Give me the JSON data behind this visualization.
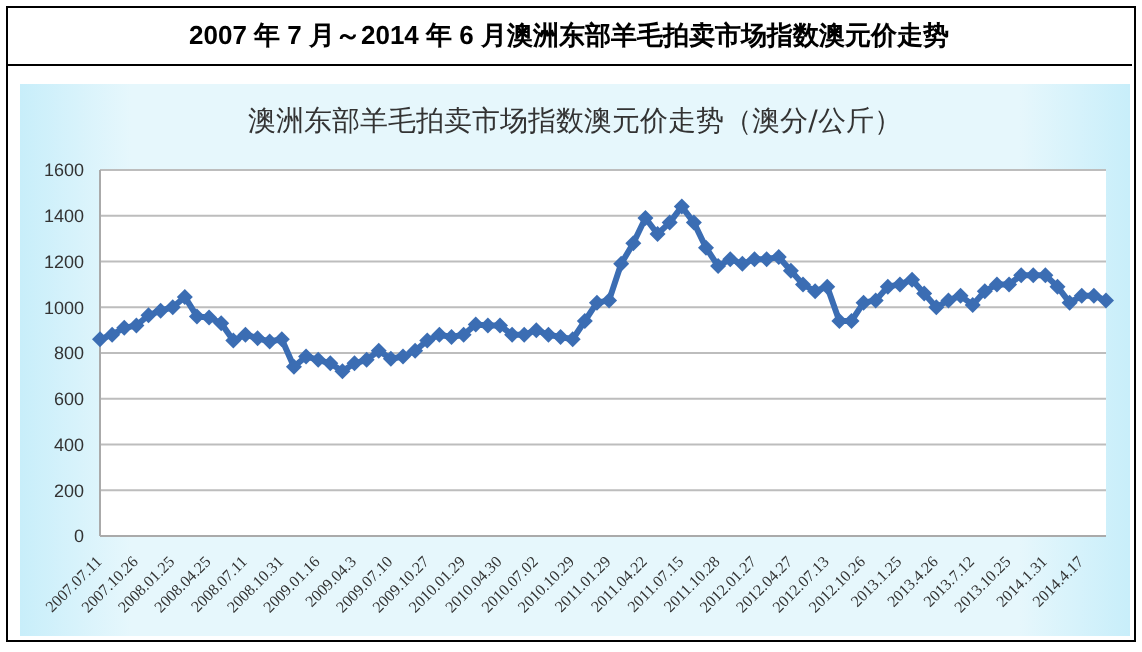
{
  "chart_data": {
    "type": "line",
    "title": "2007 年 7 月～2014 年 6 月澳洲东部羊毛拍卖市场指数澳元价走势",
    "subtitle": "澳洲东部羊毛拍卖市场指数澳元价走势（澳分/公斤）",
    "categories": [
      "2007.07.11",
      null,
      null,
      "2007.10.26",
      null,
      null,
      "2008.01.25",
      null,
      null,
      "2008.04.25",
      null,
      null,
      "2008.07.11",
      null,
      null,
      "2008.10.31",
      null,
      null,
      "2009.01.16",
      null,
      null,
      "2009.04.3",
      null,
      null,
      "2009.07.10",
      null,
      null,
      "2009.10.27",
      null,
      null,
      "2010.01.29",
      null,
      null,
      "2010.04.30",
      null,
      null,
      "2010.07.02",
      null,
      null,
      "2010.10.29",
      null,
      null,
      "2011.01.29",
      null,
      null,
      "2011.04.22",
      null,
      null,
      "2011.07.15",
      null,
      null,
      "2011.10.28",
      null,
      null,
      "2012.01.27",
      null,
      null,
      "2012.04.27",
      null,
      null,
      "2012.07.13",
      null,
      null,
      "2012.10.26",
      null,
      null,
      "2013.1.25",
      null,
      null,
      "2013.4.26",
      null,
      null,
      "2013.7.12",
      null,
      null,
      "2013.10.25",
      null,
      null,
      "2014.1.31",
      null,
      null,
      "2014.4.17",
      null,
      null
    ],
    "series": [
      {
        "color": "#3b6db3",
        "values": [
          860,
          880,
          910,
          920,
          965,
          985,
          1000,
          1045,
          960,
          955,
          930,
          855,
          880,
          865,
          850,
          860,
          740,
          785,
          770,
          755,
          720,
          755,
          770,
          810,
          775,
          785,
          810,
          855,
          880,
          870,
          880,
          925,
          920,
          920,
          880,
          880,
          900,
          880,
          870,
          860,
          940,
          1020,
          1030,
          1190,
          1280,
          1390,
          1320,
          1370,
          1440,
          1370,
          1260,
          1180,
          1210,
          1190,
          1210,
          1210,
          1220,
          1160,
          1100,
          1070,
          1090,
          940,
          940,
          1020,
          1030,
          1090,
          1100,
          1120,
          1060,
          1000,
          1030,
          1050,
          1010,
          1070,
          1100,
          1100,
          1140,
          1140,
          1140,
          1090,
          1020,
          1050,
          1050,
          1030
        ]
      }
    ],
    "ylim": [
      0,
      1600
    ],
    "yticks": [
      0,
      200,
      400,
      600,
      800,
      1000,
      1200,
      1400,
      1600
    ],
    "grid": "y",
    "marker": "diamond",
    "line_style": "solid",
    "legend": false
  }
}
